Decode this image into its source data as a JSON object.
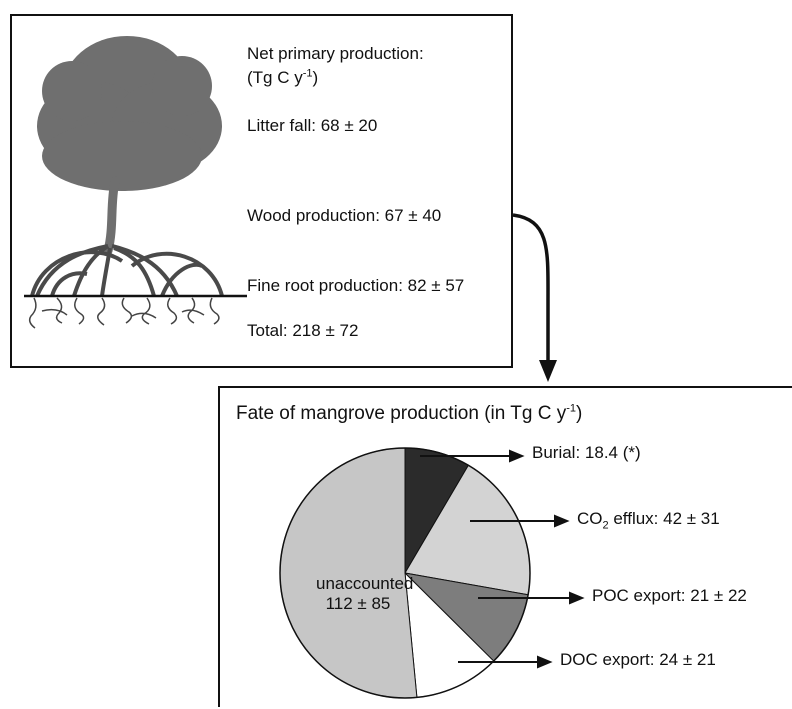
{
  "npp": {
    "heading_line1": "Net primary production:",
    "heading_unit_prefix": "(Tg C y",
    "heading_unit_exp": "-1",
    "heading_unit_suffix": ")",
    "litter_fall": "Litter fall: 68 ± 20",
    "wood_production": "Wood production: 67 ± 40",
    "fine_root_production": "Fine root production: 82 ± 57",
    "total": "Total: 218 ± 72"
  },
  "fate": {
    "title_prefix": "Fate of mangrove production (in Tg C y",
    "title_exp": "-1",
    "title_suffix": ")",
    "burial": "Burial: 18.4 (*)",
    "co2_prefix": "CO",
    "co2_sub": "2",
    "co2_suffix": " efflux: 42 ± 31",
    "poc": "POC export: 21 ± 22",
    "doc": "DOC export: 24 ± 21",
    "unaccounted_line1": "unaccounted",
    "unaccounted_line2": "112 ± 85"
  },
  "chart_data": {
    "type": "pie",
    "title": "Fate of mangrove production (in Tg C y-1)",
    "slices": [
      {
        "label": "Burial",
        "value": 18.4,
        "color": "#2b2b2b"
      },
      {
        "label": "CO2 efflux",
        "value": 42,
        "color": "#d3d3d3"
      },
      {
        "label": "POC export",
        "value": 21,
        "color": "#7d7d7d"
      },
      {
        "label": "DOC export",
        "value": 24,
        "color": "#ffffff"
      },
      {
        "label": "unaccounted",
        "value": 112,
        "color": "#c6c6c6"
      }
    ]
  },
  "colors": {
    "tree": "#6f6f6f",
    "outline": "#111111"
  }
}
